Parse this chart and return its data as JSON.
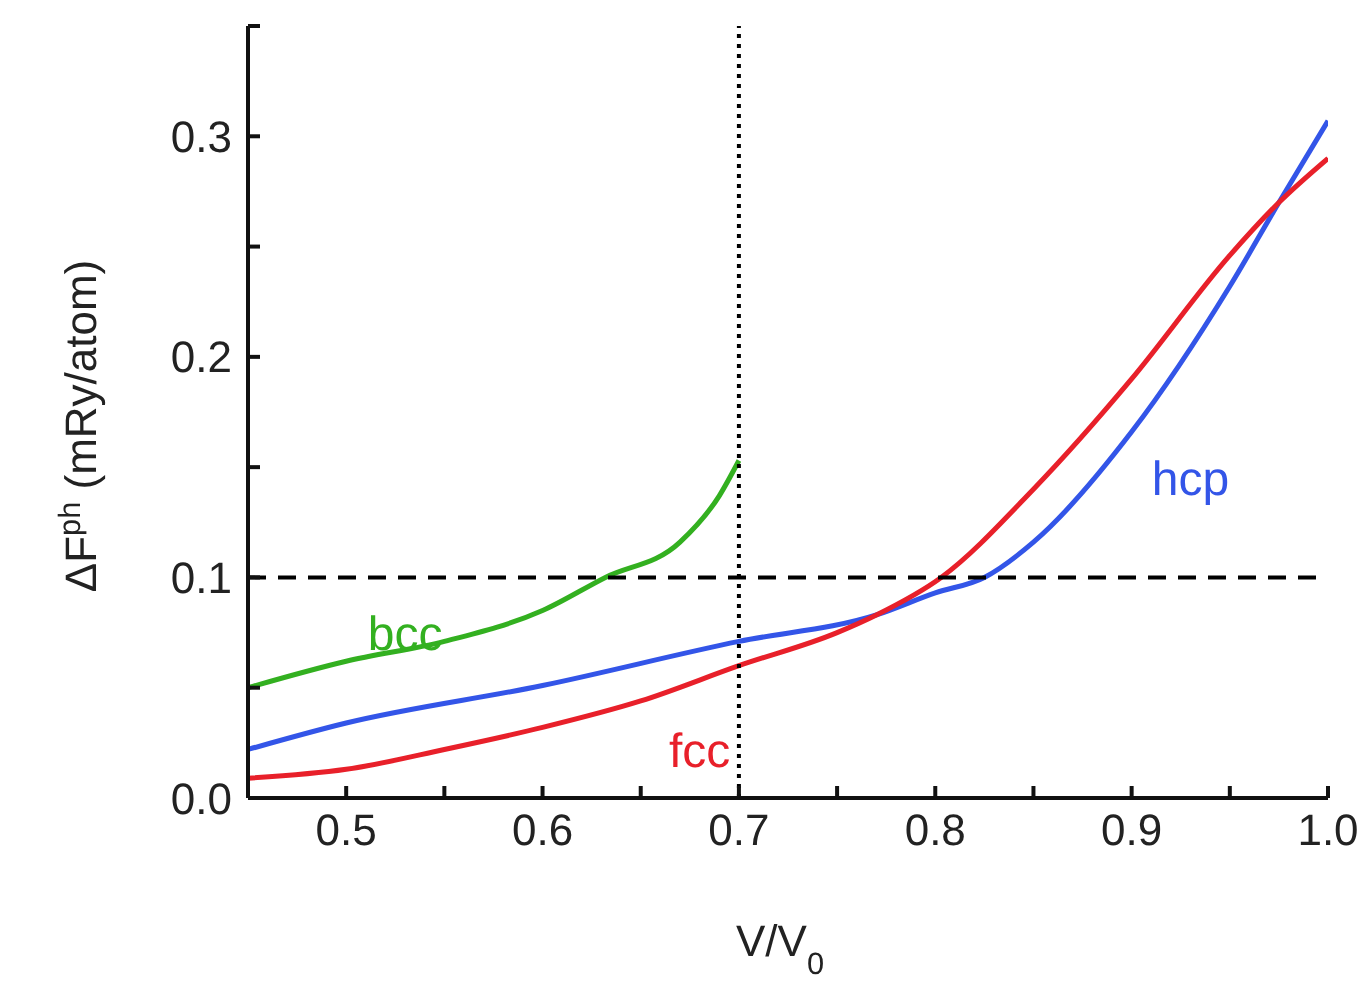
{
  "chart_data": {
    "type": "line",
    "xlabel": "V/V$_{0}$",
    "ylabel": "ΔF$^{ph}$ (mRy/atom)",
    "xlim": [
      0.45,
      1.0
    ],
    "ylim": [
      0,
      0.35
    ],
    "xticks": [
      {
        "value": 0.45,
        "label": null
      },
      0.5,
      {
        "value": 0.55,
        "label": null
      },
      0.6,
      {
        "value": 0.65,
        "label": null
      },
      0.7,
      {
        "value": 0.75,
        "label": null
      },
      0.8,
      {
        "value": 0.85,
        "label": null
      },
      0.9,
      {
        "value": 0.95,
        "label": null
      },
      {
        "value": 1.0,
        "label": "1.0"
      }
    ],
    "yticks": [
      {
        "value": 0,
        "label": "0.0"
      },
      {
        "value": 0.05,
        "label": null
      },
      0.1,
      {
        "value": 0.15,
        "label": null
      },
      0.2,
      {
        "value": 0.25,
        "label": null
      },
      0.3,
      {
        "value": 0.35,
        "label": null
      }
    ],
    "grid": false,
    "legend": false,
    "marker": "none",
    "line_style": "solid",
    "series": [
      {
        "name": "bcc",
        "color": "#33b020",
        "x": [
          0.45,
          0.5,
          0.55,
          0.6,
          0.632,
          0.67,
          0.69,
          0.7
        ],
        "values": [
          0.05,
          0.062,
          0.071,
          0.085,
          0.1,
          0.116,
          0.137,
          0.153
        ]
      },
      {
        "name": "hcp",
        "color": "#3355e8",
        "x": [
          0.45,
          0.5,
          0.6,
          0.7,
          0.77,
          0.8,
          0.825,
          0.85,
          0.9,
          0.95,
          0.975,
          1.0
        ],
        "values": [
          0.022,
          0.034,
          0.051,
          0.071,
          0.083,
          0.093,
          0.1,
          0.116,
          0.166,
          0.232,
          0.27,
          0.307
        ]
      },
      {
        "name": "fcc",
        "color": "#e8202a",
        "x": [
          0.45,
          0.5,
          0.55,
          0.6,
          0.65,
          0.7,
          0.75,
          0.77,
          0.803,
          0.85,
          0.9,
          0.95,
          0.975,
          1.0
        ],
        "values": [
          0.009,
          0.013,
          0.022,
          0.032,
          0.044,
          0.06,
          0.075,
          0.083,
          0.1,
          0.14,
          0.19,
          0.246,
          0.27,
          0.29
        ]
      }
    ],
    "ref_lines": [
      {
        "axis": "y",
        "value": 0.1,
        "line_style": "dashed",
        "color": "#000000"
      },
      {
        "axis": "x",
        "value": 0.7,
        "line_style": "dotted",
        "color": "#000000"
      }
    ]
  }
}
